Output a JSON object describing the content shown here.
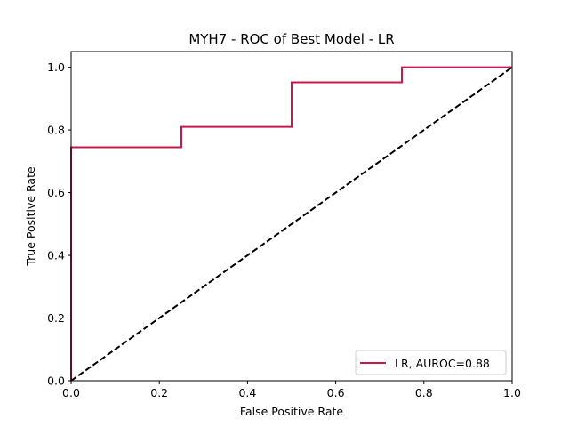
{
  "chart_data": {
    "type": "line",
    "title": "MYH7 - ROC of Best Model - LR",
    "xlabel": "False Positive Rate",
    "ylabel": "True Positive Rate",
    "xlim": [
      0.0,
      1.0
    ],
    "ylim": [
      0.0,
      1.05
    ],
    "xticks": [
      0.0,
      0.2,
      0.4,
      0.6,
      0.8,
      1.0
    ],
    "xtick_labels": [
      "0.0",
      "0.2",
      "0.4",
      "0.6",
      "0.8",
      "1.0"
    ],
    "yticks": [
      0.0,
      0.2,
      0.4,
      0.6,
      0.8,
      1.0
    ],
    "ytick_labels": [
      "0.0",
      "0.2",
      "0.4",
      "0.6",
      "0.8",
      "1.0"
    ],
    "grid": false,
    "legend_position": "lower-right",
    "series": [
      {
        "name": "LR, AUROC=0.88",
        "color": "#c8184a",
        "style": "solid",
        "x": [
          0.0,
          0.0,
          0.25,
          0.25,
          0.5,
          0.5,
          0.75,
          0.75,
          1.0
        ],
        "y": [
          0.0,
          0.745,
          0.745,
          0.81,
          0.81,
          0.952,
          0.952,
          1.0,
          1.0
        ]
      },
      {
        "color": "#000000",
        "style": "dashed",
        "x": [
          0.0,
          1.0
        ],
        "y": [
          0.0,
          1.0
        ]
      }
    ]
  }
}
